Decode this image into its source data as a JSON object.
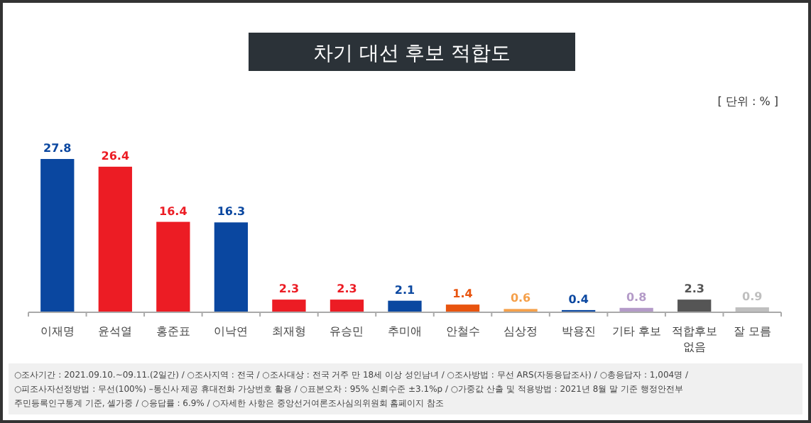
{
  "chart_data": {
    "type": "bar",
    "title": "차기 대선 후보 적합도",
    "subtitle": "[ 단위 : % ]",
    "categories": [
      "이재명",
      "윤석열",
      "홍준표",
      "이낙연",
      "최재형",
      "유승민",
      "추미애",
      "안철수",
      "심상정",
      "박용진",
      "기타 후보",
      "적합후보 없음",
      "잘 모름"
    ],
    "values": [
      27.8,
      26.4,
      16.4,
      16.3,
      2.3,
      2.3,
      2.1,
      1.4,
      0.6,
      0.4,
      0.8,
      2.3,
      0.9
    ],
    "colors": [
      "#0a47a0",
      "#ec1c24",
      "#ec1c24",
      "#0a47a0",
      "#ec1c24",
      "#ec1c24",
      "#0a47a0",
      "#e8540f",
      "#f5a04a",
      "#0a47a0",
      "#b49bc8",
      "#555555",
      "#bfbfbf"
    ],
    "data_labels": true,
    "annotations": [
      "○조사기간 : 2021.09.10.~09.11.(2일간) / ○조사지역 : 전국 / ○조사대상 : 전국 거주 만 18세 이상 성인남녀 / ○조사방법 : 무선 ARS(자동응답조사) / ○총응답자 : 1,004명 /",
      "○피조사자선정방법 : 무선(100%) –통신사 제공 휴대전화 가상번호 활용 / ○표본오차 : 95% 신뢰수준 ±3.1%p / ○가중값 산출 및 적용방법 : 2021년 8월 말 기준 행정안전부",
      "주민등록인구통계 기준, 셀가중 / ○응답률 : 6.9% / ○자세한 사항은 중앙선거여론조사심의위원회 홈페이지 참조"
    ]
  }
}
